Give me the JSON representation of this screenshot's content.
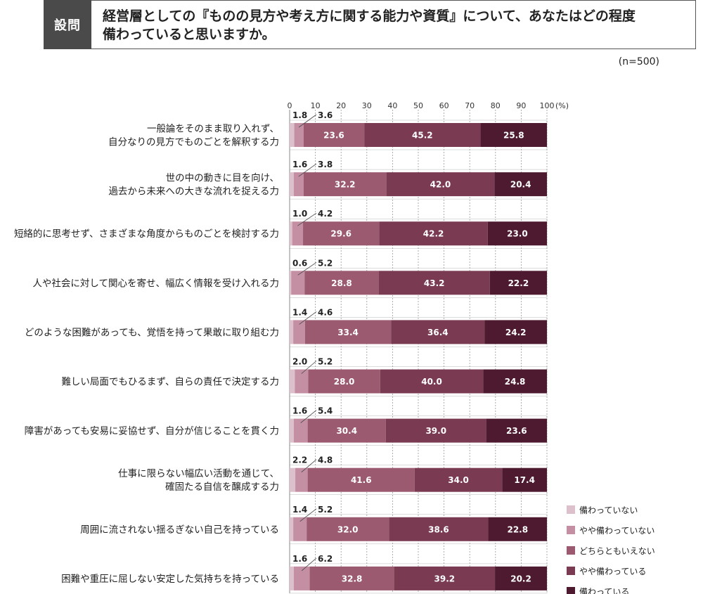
{
  "question": {
    "tag": "設問",
    "line1": "経営層としての『ものの見方や考え方に関する能力や資質』について、あなたはどの程度",
    "line2": "備わっていると思いますか。"
  },
  "sample_size": "(n=500)",
  "chart_data": {
    "type": "bar",
    "orientation": "horizontal",
    "stacked": true,
    "percent_unit": "(%)",
    "xlim": [
      0,
      100
    ],
    "x_ticks": [
      "0",
      "10",
      "20",
      "30",
      "40",
      "50",
      "60",
      "70",
      "80",
      "90",
      "100"
    ],
    "legend_position": "bottom-right",
    "categories": [
      [
        "一般論をそのまま取り入れず、",
        "自分なりの見方でものごとを解釈する力"
      ],
      [
        "世の中の動きに目を向け、",
        "過去から未来への大きな流れを捉える力"
      ],
      [
        "短絡的に思考せず、さまざまな角度からものごとを検討する力"
      ],
      [
        "人や社会に対して関心を寄せ、幅広く情報を受け入れる力"
      ],
      [
        "どのような困難があっても、覚悟を持って果敢に取り組む力"
      ],
      [
        "難しい局面でもひるまず、自らの責任で決定する力"
      ],
      [
        "障害があっても安易に妥協せず、自分が信じることを貫く力"
      ],
      [
        "仕事に限らない幅広い活動を通じて、",
        "確固たる自信を醸成する力"
      ],
      [
        "周囲に流されない揺るぎない自己を持っている"
      ],
      [
        "困難や重圧に屈しない安定した気持ちを持っている"
      ]
    ],
    "series": [
      {
        "name": "備わっていない",
        "color": "#dcc0cb",
        "values": [
          1.8,
          1.6,
          1.0,
          0.6,
          1.4,
          2.0,
          1.6,
          2.2,
          1.4,
          1.6
        ],
        "labels": [
          "1.8",
          "1.6",
          "1.0",
          "0.6",
          "1.4",
          "2.0",
          "1.6",
          "2.2",
          "1.4",
          "1.6"
        ]
      },
      {
        "name": "やや備わっていない",
        "color": "#c48fa3",
        "values": [
          3.6,
          3.8,
          4.2,
          5.2,
          4.6,
          5.2,
          5.4,
          4.8,
          5.2,
          6.2
        ],
        "labels": [
          "3.6",
          "3.8",
          "4.2",
          "5.2",
          "4.6",
          "5.2",
          "5.4",
          "4.8",
          "5.2",
          "6.2"
        ]
      },
      {
        "name": "どちらともいえない",
        "color": "#9b5a70",
        "values": [
          23.6,
          32.2,
          29.6,
          28.8,
          33.4,
          28.0,
          30.4,
          41.6,
          32.0,
          32.8
        ],
        "labels": [
          "23.6",
          "32.2",
          "29.6",
          "28.8",
          "33.4",
          "28.0",
          "30.4",
          "41.6",
          "32.0",
          "32.8"
        ]
      },
      {
        "name": "やや備わっている",
        "color": "#7a3a52",
        "values": [
          45.2,
          42.0,
          42.2,
          43.2,
          36.4,
          40.0,
          39.0,
          34.0,
          38.6,
          39.2
        ],
        "labels": [
          "45.2",
          "42.0",
          "42.2",
          "43.2",
          "36.4",
          "40.0",
          "39.0",
          "34.0",
          "38.6",
          "39.2"
        ]
      },
      {
        "name": "備わっている",
        "color": "#4e1a30",
        "values": [
          25.8,
          20.4,
          23.0,
          22.2,
          24.2,
          24.8,
          23.6,
          17.4,
          22.8,
          20.2
        ],
        "labels": [
          "25.8",
          "20.4",
          "23.0",
          "22.2",
          "24.2",
          "24.8",
          "23.6",
          "17.4",
          "22.8",
          "20.2"
        ]
      }
    ]
  }
}
